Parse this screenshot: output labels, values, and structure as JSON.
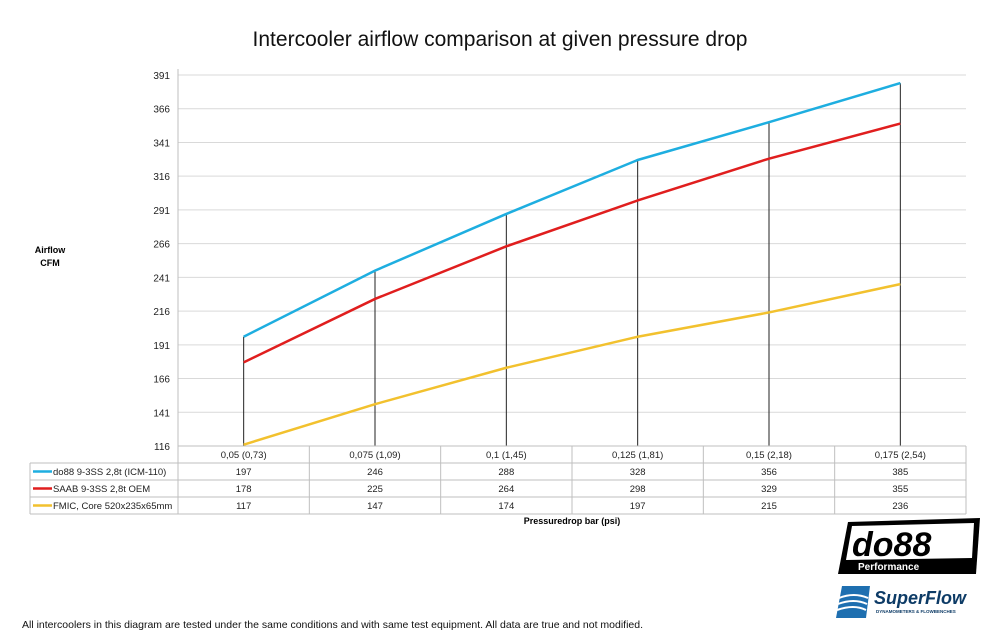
{
  "chart_data": {
    "type": "line",
    "title": "Intercooler airflow comparison at given pressure drop",
    "ylabel": [
      "Airflow",
      "CFM"
    ],
    "xlabel": "Pressuredrop bar (psi)",
    "categories": [
      "0,05 (0,73)",
      "0,075 (1,09)",
      "0,1 (1,45)",
      "0,125 (1,81)",
      "0,15 (2,18)",
      "0,175 (2,54)"
    ],
    "yticks": [
      116,
      141,
      166,
      191,
      216,
      241,
      266,
      291,
      316,
      341,
      366,
      391
    ],
    "ylim": [
      116,
      391
    ],
    "grid": true,
    "legend": "data-table-below",
    "series": [
      {
        "name": "do88 9-3SS 2,8t (ICM-110)",
        "color": "#1eaee0",
        "values": [
          197,
          246,
          288,
          328,
          356,
          385
        ]
      },
      {
        "name": "SAAB 9-3SS 2,8t OEM",
        "color": "#e01e1e",
        "values": [
          178,
          225,
          264,
          298,
          329,
          355
        ]
      },
      {
        "name": "FMIC, Core 520x235x65mm",
        "color": "#f2c12e",
        "values": [
          117,
          147,
          174,
          197,
          215,
          236
        ]
      }
    ]
  },
  "logos": {
    "do88": "do88 Performance",
    "superflow": "SuperFlow DYNAMOMETERS & FLOWBENCHES"
  },
  "footer": "All intercoolers in this diagram are tested under the same conditions and with same test equipment. All data are true and not modified."
}
